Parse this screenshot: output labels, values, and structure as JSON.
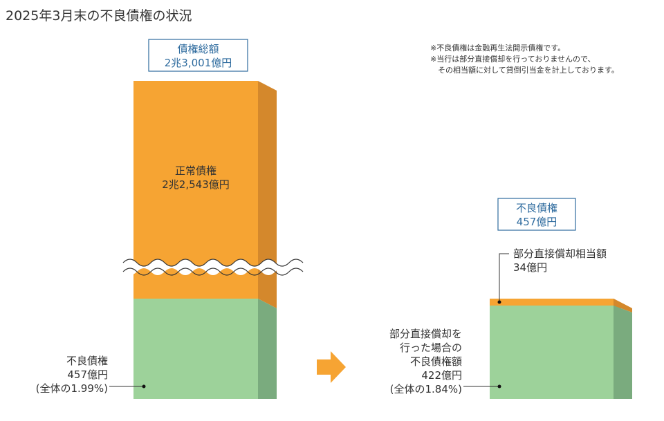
{
  "title": "2025年3月末の不良債権の状況",
  "notes": [
    "※不良債権は金融再生法開示債権です。",
    "※当行は部分直接償却を行っておりませんので、",
    "　その相当額に対して貸倒引当金を計上しております。"
  ],
  "colors": {
    "orange_front": "#f6a433",
    "orange_side": "#d4882c",
    "orange_top": "#e08d21",
    "green_front": "#9dd29a",
    "green_side": "#7aab7e",
    "box_border": "#2e6b9e",
    "box_text": "#2e6b9e",
    "arrow": "#f6a433"
  },
  "chart_data": [
    {
      "type": "bar",
      "stacked": true,
      "axis_break": true,
      "total_label": [
        "債権総額",
        "2兆3,001億円"
      ],
      "segments": [
        {
          "name": "正常債権",
          "label": [
            "正常債権",
            "2兆2,543億円"
          ],
          "value_oku_yen": 22543,
          "color": "orange"
        },
        {
          "name": "不良債権",
          "label": [
            "不良債権",
            "457億円",
            "(全体の1.99%)"
          ],
          "value_oku_yen": 457,
          "share_percent": 1.99,
          "color": "green"
        }
      ],
      "total_oku_yen": 23001
    },
    {
      "type": "bar",
      "stacked": true,
      "total_label": [
        "不良債権",
        "457億円"
      ],
      "segments": [
        {
          "name": "部分直接償却相当額",
          "label": [
            "部分直接償却相当額",
            "34億円"
          ],
          "value_oku_yen": 34,
          "color": "orange"
        },
        {
          "name": "部分直接償却を行った場合の不良債権額",
          "label": [
            "部分直接償却を",
            "行った場合の",
            "不良債権額",
            "422億円",
            "(全体の1.84%)"
          ],
          "value_oku_yen": 422,
          "share_percent": 1.84,
          "color": "green"
        }
      ],
      "total_oku_yen": 457
    }
  ]
}
